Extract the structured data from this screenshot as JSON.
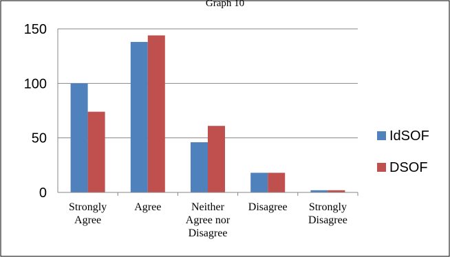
{
  "chart_data": {
    "type": "bar",
    "title": "Graph 10",
    "xlabel": "",
    "ylabel": "",
    "categories": [
      [
        "Strongly",
        "Agree"
      ],
      [
        "Agree"
      ],
      [
        "Neither",
        "Agree nor",
        "Disagree"
      ],
      [
        "Disagree"
      ],
      [
        "Strongly",
        "Disagree"
      ]
    ],
    "series": [
      {
        "name": "IdSOF",
        "color": "#4F81BD",
        "values": [
          100,
          138,
          46,
          18,
          2
        ]
      },
      {
        "name": "DSOF",
        "color": "#C0504D",
        "values": [
          74,
          144,
          61,
          18,
          2
        ]
      }
    ],
    "ylim": [
      0,
      150
    ],
    "yticks": [
      0,
      50,
      100,
      150
    ],
    "grid": true,
    "legend_position": "right"
  }
}
